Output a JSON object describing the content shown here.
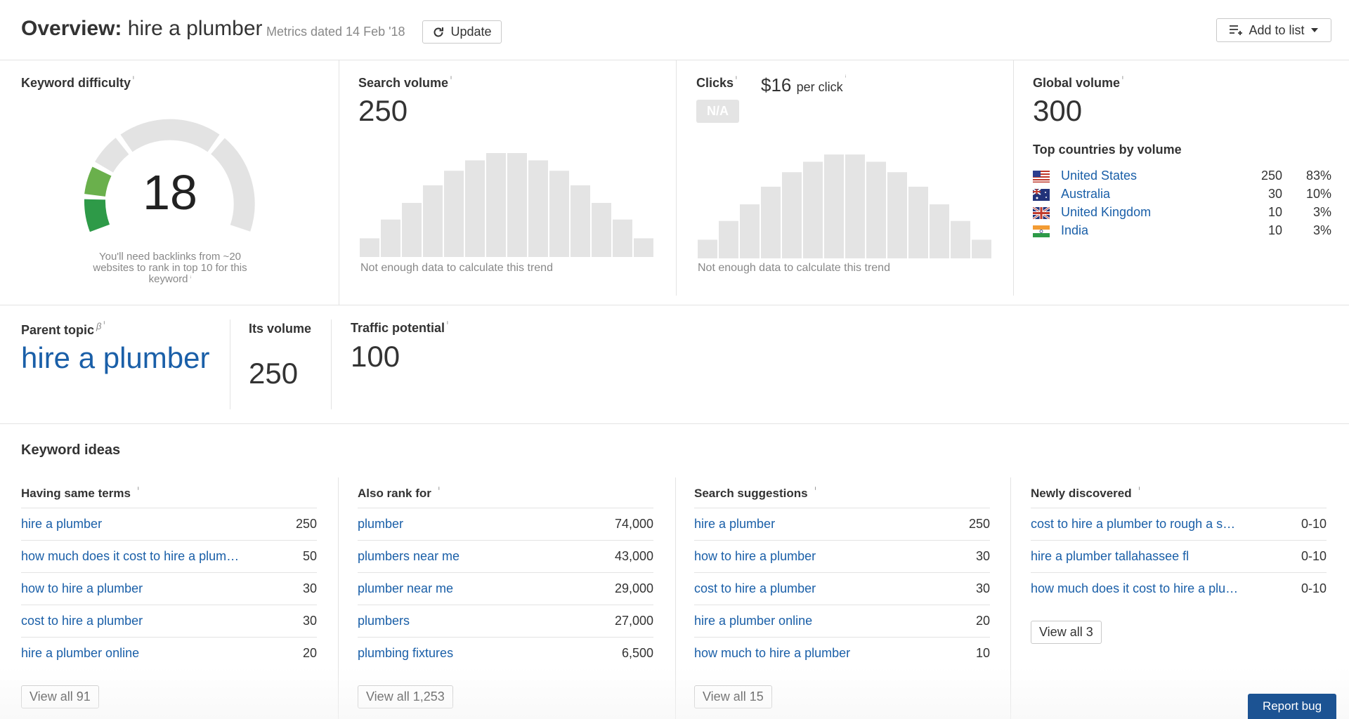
{
  "header": {
    "title_prefix": "Overview:",
    "keyword": "hire a plumber",
    "metrics_date": "Metrics dated 14 Feb '18",
    "update_label": "Update",
    "add_to_list_label": "Add to list"
  },
  "keyword_difficulty": {
    "title": "Keyword difficulty",
    "info": "ⁱ",
    "score": "18",
    "note": "You'll need backlinks from ~20 websites to rank in top 10 for this keyword"
  },
  "search_volume": {
    "title": "Search volume",
    "value": "250",
    "trend_note": "Not enough data to calculate this trend",
    "trend_bars": [
      0.18,
      0.36,
      0.52,
      0.69,
      0.83,
      0.93,
      1.0,
      1.0,
      0.93,
      0.83,
      0.69,
      0.52,
      0.36,
      0.18
    ]
  },
  "clicks": {
    "title": "Clicks",
    "value": "N/A",
    "cpc_value": "$16",
    "cpc_suffix": "per click",
    "trend_note": "Not enough data to calculate this trend",
    "trend_bars": [
      0.18,
      0.36,
      0.52,
      0.69,
      0.83,
      0.93,
      1.0,
      1.0,
      0.93,
      0.83,
      0.69,
      0.52,
      0.36,
      0.18
    ]
  },
  "global_volume": {
    "title": "Global volume",
    "value": "300",
    "countries_title": "Top countries by volume",
    "countries": [
      {
        "name": "United States",
        "volume": "250",
        "percent": "83%",
        "flag": "us-flag"
      },
      {
        "name": "Australia",
        "volume": "30",
        "percent": "10%",
        "flag": "au-flag"
      },
      {
        "name": "United Kingdom",
        "volume": "10",
        "percent": "3%",
        "flag": "uk-flag"
      },
      {
        "name": "India",
        "volume": "10",
        "percent": "3%",
        "flag": "in-flag"
      }
    ]
  },
  "parent_topic": {
    "title": "Parent topic",
    "beta": "β",
    "topic": "hire a plumber",
    "its_volume_label": "Its volume",
    "its_volume": "250",
    "traffic_potential_label": "Traffic potential",
    "traffic_potential": "100"
  },
  "keyword_ideas": {
    "title": "Keyword ideas",
    "columns": [
      {
        "title": "Having same terms",
        "rows": [
          {
            "keyword": "hire a plumber",
            "value": "250"
          },
          {
            "keyword": "how much does it cost to hire a plum…",
            "value": "50"
          },
          {
            "keyword": "how to hire a plumber",
            "value": "30"
          },
          {
            "keyword": "cost to hire a plumber",
            "value": "30"
          },
          {
            "keyword": "hire a plumber online",
            "value": "20"
          }
        ],
        "view_all": "View all 91"
      },
      {
        "title": "Also rank for",
        "rows": [
          {
            "keyword": "plumber",
            "value": "74,000"
          },
          {
            "keyword": "plumbers near me",
            "value": "43,000"
          },
          {
            "keyword": "plumber near me",
            "value": "29,000"
          },
          {
            "keyword": "plumbers",
            "value": "27,000"
          },
          {
            "keyword": "plumbing fixtures",
            "value": "6,500"
          }
        ],
        "view_all": "View all 1,253"
      },
      {
        "title": "Search suggestions",
        "rows": [
          {
            "keyword": "hire a plumber",
            "value": "250"
          },
          {
            "keyword": "how to hire a plumber",
            "value": "30"
          },
          {
            "keyword": "cost to hire a plumber",
            "value": "30"
          },
          {
            "keyword": "hire a plumber online",
            "value": "20"
          },
          {
            "keyword": "how much to hire a plumber",
            "value": "10"
          }
        ],
        "view_all": "View all 15"
      },
      {
        "title": "Newly discovered",
        "rows": [
          {
            "keyword": "cost to hire a plumber to rough a s…",
            "value": "0-10"
          },
          {
            "keyword": "hire a plumber tallahassee fl",
            "value": "0-10"
          },
          {
            "keyword": "how much does it cost to hire a plu…",
            "value": "0-10"
          }
        ],
        "view_all": "View all 3"
      }
    ]
  },
  "report_bug_label": "Report bug",
  "colors": {
    "link": "#1a5fa8",
    "gauge_green_light": "#6ab04c",
    "gauge_green_dark": "#2e9a48",
    "gauge_gray": "#e3e3e3",
    "bar_gray": "#e4e4e4",
    "report_bug_bg": "#1c5393"
  }
}
